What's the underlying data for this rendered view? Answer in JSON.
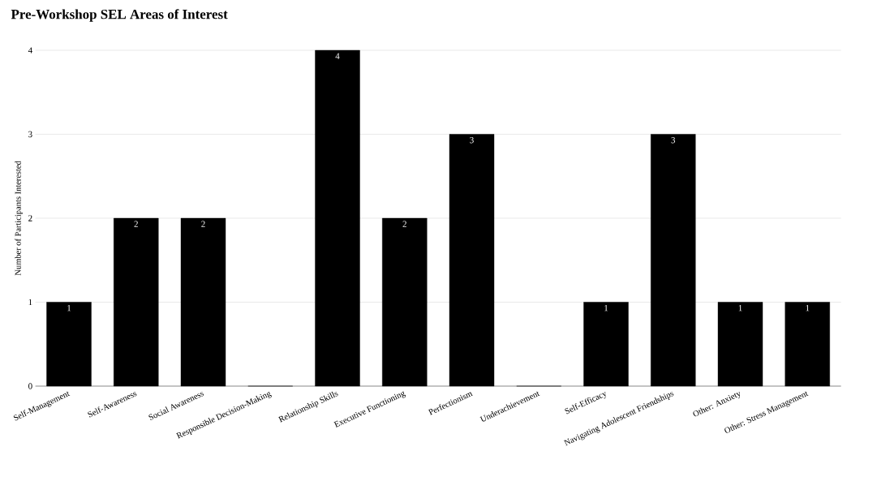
{
  "chart_data": {
    "type": "bar",
    "title": "Pre-Workshop SEL Areas of Interest",
    "ylabel": "Number of Participants Interested",
    "categories": [
      "Self-Management",
      "Self-Awareness",
      "Social Awareness",
      "Responsible Decision-Making",
      "Relationship Skills",
      "Executive Functioning",
      "Perfectionism",
      "Underachievement",
      "Self-Efficacy",
      "Navigating Adolescent Friendships",
      "Other: Anxiety",
      "Other: Stress Management"
    ],
    "values": [
      1,
      2,
      2,
      0,
      4,
      2,
      3,
      0,
      1,
      3,
      1,
      1
    ],
    "value_labels": [
      "1",
      "2",
      "2",
      null,
      "4",
      "2",
      "3",
      null,
      "1",
      "3",
      "1",
      "1"
    ],
    "color": "#000000",
    "ylim": [
      0,
      4
    ],
    "yticks": [
      0,
      1,
      2,
      3,
      4
    ],
    "grid": "y"
  }
}
